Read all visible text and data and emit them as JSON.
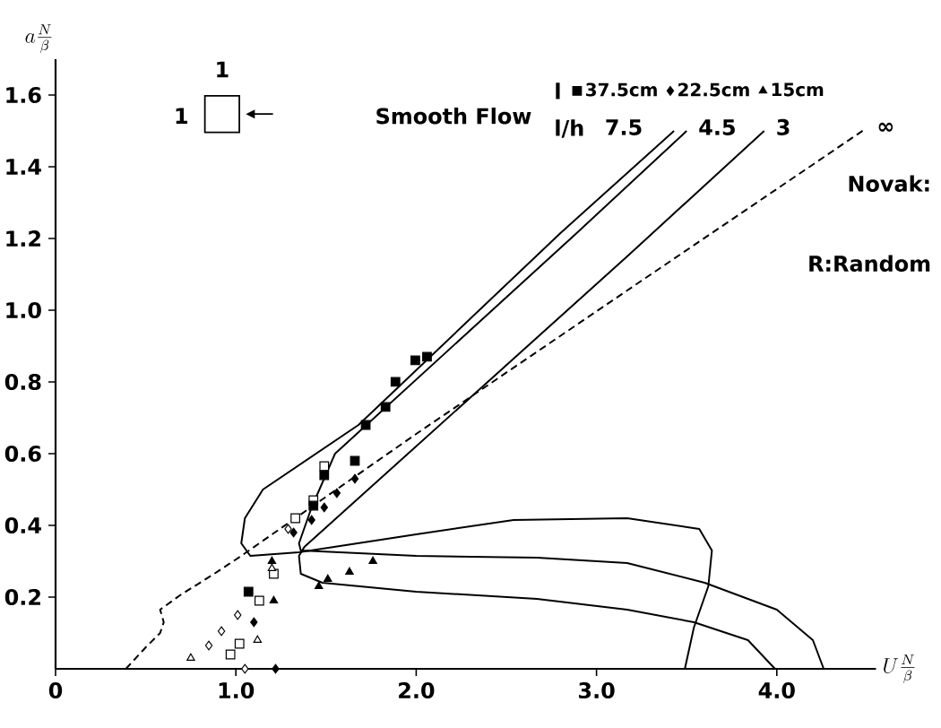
{
  "chart_data": {
    "type": "line",
    "xlabel": "U\\frac{N}{\\beta}",
    "ylabel": "a\\frac{N}{\\beta}",
    "xlim": [
      0,
      4.55
    ],
    "ylim": [
      0,
      1.7
    ],
    "xticks": [
      {
        "value": 0,
        "label": "0"
      },
      {
        "value": 1,
        "label": "1.0"
      },
      {
        "value": 2,
        "label": "2.0"
      },
      {
        "value": 3,
        "label": "3.0"
      },
      {
        "value": 4,
        "label": "4.0"
      }
    ],
    "yticks": [
      0.2,
      0.4,
      0.6,
      0.8,
      {
        "value": 1,
        "label": "1.0"
      },
      1.2,
      1.4,
      1.6
    ],
    "legend": "top right",
    "annotations": [
      "Smooth Flow",
      "1",
      "1",
      "l",
      "l/h",
      "Novak:",
      "R:Random"
    ],
    "series": [
      {
        "name": "7.5",
        "type": "line",
        "line_style": "solid",
        "color": "#000000",
        "x": [
          3.43,
          2.8,
          1.68,
          1.15,
          1.05,
          1.03,
          1.08,
          1.35,
          2.0,
          2.54,
          3.17,
          3.57,
          3.64,
          3.62,
          3.54,
          3.49
        ],
        "values": [
          1.5,
          1.215,
          0.68,
          0.5,
          0.42,
          0.35,
          0.315,
          0.325,
          0.375,
          0.415,
          0.42,
          0.39,
          0.33,
          0.23,
          0.115,
          0
        ]
      },
      {
        "name": "4.5",
        "type": "line",
        "line_style": "solid",
        "color": "#000000",
        "x": [
          3.5,
          2.89,
          1.55,
          1.42,
          1.35,
          1.36,
          2.0,
          2.67,
          3.17,
          3.6,
          4.0,
          4.2,
          4.26
        ],
        "values": [
          1.5,
          1.215,
          0.6,
          0.45,
          0.35,
          0.33,
          0.315,
          0.31,
          0.295,
          0.24,
          0.165,
          0.08,
          0
        ]
      },
      {
        "name": "3",
        "type": "line",
        "line_style": "solid",
        "color": "#000000",
        "x": [
          3.93,
          3.17,
          1.38,
          1.35,
          1.36,
          1.48,
          2.0,
          2.67,
          3.17,
          3.54,
          3.84,
          3.99
        ],
        "values": [
          1.5,
          1.15,
          0.34,
          0.315,
          0.265,
          0.24,
          0.215,
          0.195,
          0.165,
          0.13,
          0.08,
          0
        ]
      },
      {
        "name": "∞",
        "type": "line",
        "line_style": "dashed",
        "color": "#000000",
        "x": [
          0.39,
          0.5,
          0.58,
          0.6,
          0.58,
          0.69,
          0.88,
          1.03,
          2.0,
          3.17,
          4.49
        ],
        "values": [
          0,
          0.06,
          0.1,
          0.13,
          0.165,
          0.205,
          0.265,
          0.315,
          0.655,
          1.055,
          1.505
        ]
      },
      {
        "type": "scatter",
        "marker": "square",
        "color": "#ffffff",
        "x": [
          1.49,
          1.43,
          1.33,
          1.21,
          1.13,
          1.02,
          0.97
        ],
        "values": [
          0.565,
          0.47,
          0.42,
          0.265,
          0.19,
          0.07,
          0.04
        ]
      },
      {
        "name": "37.5cm",
        "type": "scatter",
        "marker": "square",
        "color": "#000000",
        "x": [
          1.995,
          2.06,
          1.885,
          1.83,
          1.72,
          1.66,
          1.49,
          1.43,
          1.07
        ],
        "values": [
          0.86,
          0.87,
          0.8,
          0.73,
          0.68,
          0.58,
          0.54,
          0.455,
          0.215
        ]
      },
      {
        "type": "scatter",
        "marker": "diamond",
        "color": "#ffffff",
        "x": [
          1.29,
          1.01,
          0.92,
          1.05,
          0.85
        ],
        "values": [
          0.39,
          0.15,
          0.105,
          0,
          0.065
        ]
      },
      {
        "name": "22.5cm",
        "type": "scatter",
        "marker": "diamond",
        "color": "#000000",
        "x": [
          1.66,
          1.56,
          1.49,
          1.42,
          1.32,
          1.22,
          1.1
        ],
        "values": [
          0.53,
          0.49,
          0.45,
          0.415,
          0.38,
          0,
          0.13
        ]
      },
      {
        "type": "scatter",
        "marker": "triangle",
        "color": "#ffffff",
        "x": [
          1.12,
          0.75,
          1.2
        ],
        "values": [
          0.08,
          0.03,
          0.28
        ]
      },
      {
        "name": "15cm",
        "type": "scatter",
        "marker": "triangle",
        "color": "#000000",
        "x": [
          1.2,
          1.46,
          1.63,
          1.76,
          1.51,
          1.21
        ],
        "values": [
          0.3,
          0.23,
          0.27,
          0.3,
          0.25,
          0.19
        ]
      }
    ]
  }
}
